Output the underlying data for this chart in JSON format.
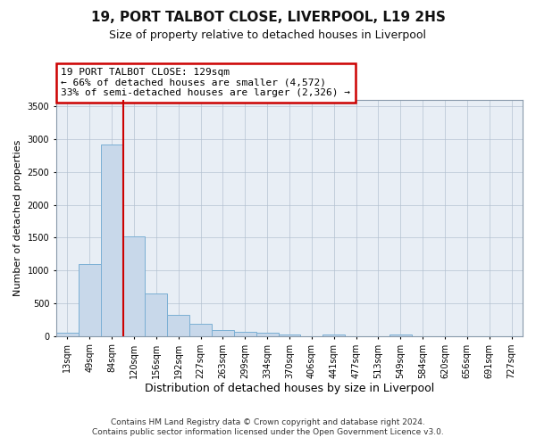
{
  "title": "19, PORT TALBOT CLOSE, LIVERPOOL, L19 2HS",
  "subtitle": "Size of property relative to detached houses in Liverpool",
  "xlabel": "Distribution of detached houses by size in Liverpool",
  "ylabel": "Number of detached properties",
  "categories": [
    "13sqm",
    "49sqm",
    "84sqm",
    "120sqm",
    "156sqm",
    "192sqm",
    "227sqm",
    "263sqm",
    "299sqm",
    "334sqm",
    "370sqm",
    "406sqm",
    "441sqm",
    "477sqm",
    "513sqm",
    "549sqm",
    "584sqm",
    "620sqm",
    "656sqm",
    "691sqm",
    "727sqm"
  ],
  "values": [
    50,
    1100,
    2920,
    1520,
    650,
    330,
    185,
    95,
    70,
    50,
    30,
    0,
    30,
    0,
    0,
    20,
    0,
    0,
    0,
    0,
    0
  ],
  "bar_color": "#c8d8ea",
  "bar_edge_color": "#7bafd4",
  "prop_line_index": 2.5,
  "property_line_color": "#cc0000",
  "annotation_line1": "19 PORT TALBOT CLOSE: 129sqm",
  "annotation_line2": "← 66% of detached houses are smaller (4,572)",
  "annotation_line3": "33% of semi-detached houses are larger (2,326) →",
  "annotation_box_edgecolor": "#cc0000",
  "ylim": [
    0,
    3600
  ],
  "yticks": [
    0,
    500,
    1000,
    1500,
    2000,
    2500,
    3000,
    3500
  ],
  "footer_line1": "Contains HM Land Registry data © Crown copyright and database right 2024.",
  "footer_line2": "Contains public sector information licensed under the Open Government Licence v3.0.",
  "title_fontsize": 11,
  "subtitle_fontsize": 9,
  "xlabel_fontsize": 9,
  "ylabel_fontsize": 8,
  "tick_fontsize": 7,
  "annotation_fontsize": 8,
  "footer_fontsize": 6.5,
  "plot_bg_color": "#e8eef5"
}
